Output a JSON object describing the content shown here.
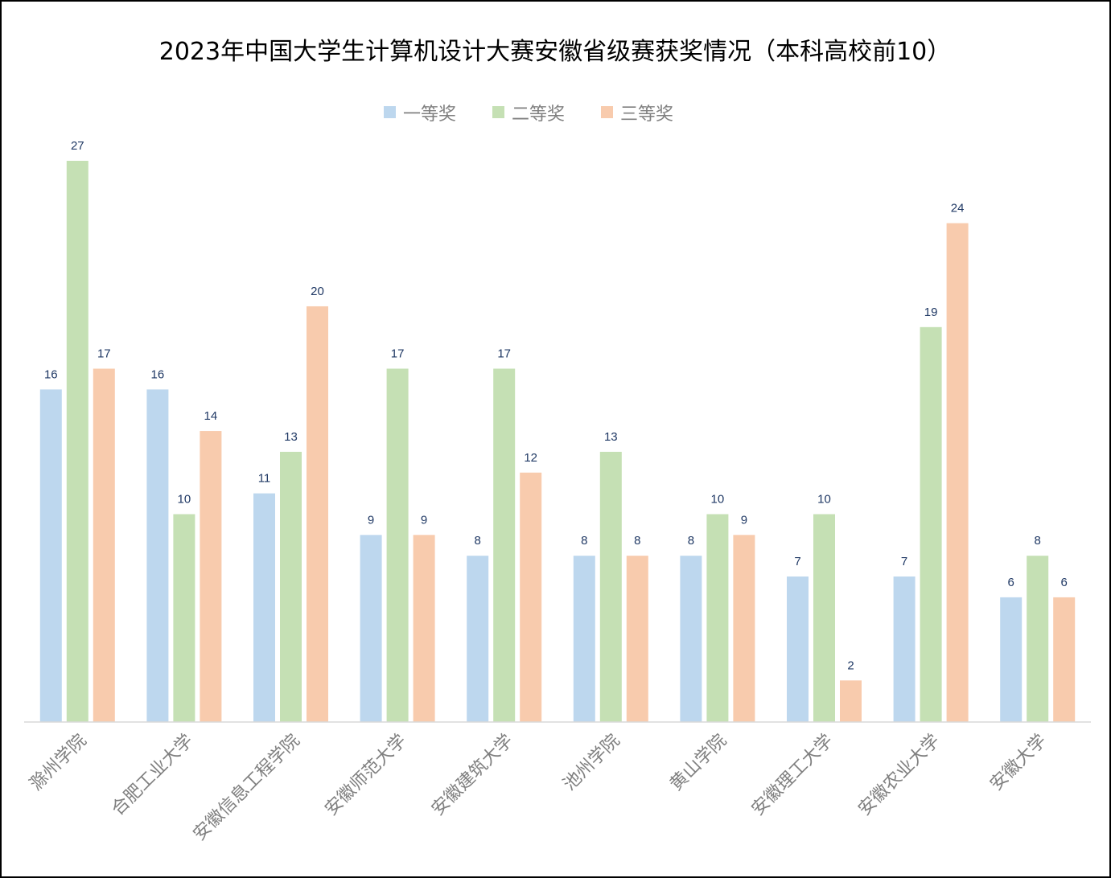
{
  "chart_data": {
    "type": "bar",
    "title": "2023年中国大学生计算机设计大赛安徽省级赛获奖情况（本科高校前10）",
    "categories": [
      "滁州学院",
      "合肥工业大学",
      "安徽信息工程学院",
      "安徽师范大学",
      "安徽建筑大学",
      "池州学院",
      "黄山学院",
      "安徽理工大学",
      "安徽农业大学",
      "安徽大学"
    ],
    "series": [
      {
        "name": "一等奖",
        "color": "#bdd7ee",
        "values": [
          16,
          16,
          11,
          9,
          8,
          8,
          8,
          7,
          7,
          6
        ]
      },
      {
        "name": "二等奖",
        "color": "#c5e0b4",
        "values": [
          27,
          10,
          13,
          17,
          17,
          13,
          10,
          10,
          19,
          8
        ]
      },
      {
        "name": "三等奖",
        "color": "#f8cbad",
        "values": [
          17,
          14,
          20,
          9,
          12,
          8,
          9,
          2,
          24,
          6
        ]
      }
    ],
    "ylim": [
      0,
      27
    ],
    "xlabel": "",
    "ylabel": "",
    "legend_position": "top",
    "grid": false,
    "data_labels": true,
    "axis_color": "#d9d9d9",
    "label_color": "#1f3864",
    "text_color": "#808080"
  }
}
